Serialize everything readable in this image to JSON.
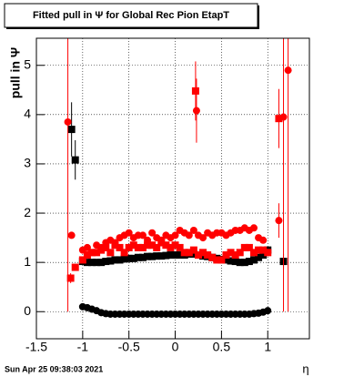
{
  "chart_data": {
    "type": "scatter",
    "title": "Fitted pull in  Ψ  for Global Rec Pion EtapT",
    "x_label": "η",
    "y_label": "pull in  Ψ",
    "timestamp": "Sun Apr 25 09:38:03 2021",
    "xlim": [
      -1.5,
      1.45
    ],
    "ylim": [
      -0.55,
      5.55
    ],
    "xticks": [
      -1.5,
      -1,
      -0.5,
      0,
      0.5,
      1
    ],
    "yticks": [
      0,
      1,
      2,
      3,
      4,
      5
    ],
    "grid": true,
    "series": [
      {
        "color": "#000000",
        "marker": "square",
        "x": [
          -1.12,
          -1.08,
          -1,
          -0.95,
          -0.9,
          -0.85,
          -0.8,
          -0.75,
          -0.7,
          -0.65,
          -0.6,
          -0.55,
          -0.5,
          -0.45,
          -0.4,
          -0.35,
          -0.3,
          -0.25,
          -0.2,
          -0.15,
          -0.1,
          -0.05,
          0,
          0.05,
          0.1,
          0.15,
          0.2,
          0.25,
          0.3,
          0.35,
          0.4,
          0.45,
          0.5,
          0.55,
          0.6,
          0.65,
          0.7,
          0.75,
          0.8,
          0.85,
          0.9,
          0.95,
          1,
          1.17
        ],
        "values": [
          3.7,
          3.08,
          1.02,
          1.0,
          1.0,
          1.0,
          1.0,
          1.02,
          1.03,
          1.05,
          1.05,
          1.07,
          1.08,
          1.08,
          1.1,
          1.1,
          1.12,
          1.12,
          1.13,
          1.13,
          1.14,
          1.15,
          1.15,
          1.15,
          1.15,
          1.17,
          1.17,
          1.15,
          1.13,
          1.12,
          1.1,
          1.08,
          1.06,
          1.05,
          1.03,
          1.02,
          1.0,
          1.0,
          1.02,
          1.05,
          1.1,
          1.15,
          1.25,
          1.02
        ],
        "errors": [
          0.55,
          0.4,
          0,
          0,
          0,
          0,
          0,
          0,
          0,
          0,
          0,
          0,
          0,
          0,
          0,
          0,
          0,
          0,
          0,
          0,
          0,
          0,
          0,
          0,
          0,
          0,
          0,
          0,
          0,
          0,
          0,
          0,
          0,
          0,
          0,
          0,
          0,
          0,
          0,
          0,
          0,
          0,
          0,
          0.15
        ]
      },
      {
        "color": "#000000",
        "marker": "circle",
        "x": [
          -1,
          -0.95,
          -0.9,
          -0.85,
          -0.8,
          -0.75,
          -0.7,
          -0.65,
          -0.6,
          -0.55,
          -0.5,
          -0.45,
          -0.4,
          -0.35,
          -0.3,
          -0.25,
          -0.2,
          -0.15,
          -0.1,
          -0.05,
          0,
          0.05,
          0.1,
          0.15,
          0.2,
          0.25,
          0.3,
          0.35,
          0.4,
          0.45,
          0.5,
          0.55,
          0.6,
          0.65,
          0.7,
          0.75,
          0.8,
          0.85,
          0.9,
          0.95,
          1
        ],
        "values": [
          0.1,
          0.08,
          0.05,
          0.02,
          -0.02,
          -0.04,
          -0.05,
          -0.05,
          -0.05,
          -0.05,
          -0.05,
          -0.05,
          -0.05,
          -0.05,
          -0.05,
          -0.05,
          -0.05,
          -0.05,
          -0.05,
          -0.05,
          -0.05,
          -0.05,
          -0.05,
          -0.05,
          -0.05,
          -0.05,
          -0.05,
          -0.05,
          -0.05,
          -0.05,
          -0.05,
          -0.05,
          -0.05,
          -0.05,
          -0.05,
          -0.05,
          -0.05,
          -0.04,
          -0.03,
          -0.01,
          0.02
        ]
      },
      {
        "color": "#ff0000",
        "marker": "circle",
        "x": [
          -1.16,
          -1.12,
          -1,
          -0.95,
          -0.9,
          -0.85,
          -0.8,
          -0.75,
          -0.7,
          -0.65,
          -0.6,
          -0.55,
          -0.5,
          -0.45,
          -0.4,
          -0.35,
          -0.3,
          -0.25,
          -0.2,
          -0.15,
          -0.1,
          -0.05,
          0,
          0.05,
          0.1,
          0.15,
          0.2,
          0.25,
          0.3,
          0.35,
          0.4,
          0.45,
          0.5,
          0.55,
          0.6,
          0.65,
          0.7,
          0.75,
          0.8,
          0.85,
          0.9,
          0.95,
          1,
          1.12,
          1.17,
          1.22,
          0.23
        ],
        "values": [
          3.85,
          1.55,
          1.25,
          1.3,
          1.2,
          1.35,
          1.3,
          1.4,
          1.45,
          1.4,
          1.5,
          1.55,
          1.6,
          1.5,
          1.55,
          1.55,
          1.45,
          1.6,
          1.5,
          1.45,
          1.55,
          1.5,
          1.55,
          1.65,
          1.6,
          1.55,
          1.65,
          1.55,
          1.5,
          1.6,
          1.55,
          1.6,
          1.6,
          1.55,
          1.6,
          1.65,
          1.65,
          1.7,
          1.65,
          1.7,
          1.5,
          1.45,
          1.2,
          1.85,
          3.95,
          4.9,
          4.08
        ],
        "errors": [
          3.85,
          0,
          0,
          0,
          0,
          0,
          0,
          0,
          0,
          0,
          0,
          0,
          0,
          0,
          0,
          0,
          0,
          0,
          0,
          0,
          0,
          0,
          0,
          0,
          0,
          0,
          0,
          0,
          0,
          0,
          0,
          0,
          0,
          0,
          0,
          0,
          0,
          0,
          0,
          0,
          0,
          0,
          0,
          0.35,
          3.95,
          4.9,
          0.65
        ]
      },
      {
        "color": "#ff0000",
        "marker": "square",
        "x": [
          -1.13,
          -1.08,
          -1,
          -0.95,
          -0.9,
          -0.85,
          -0.8,
          -0.75,
          -0.7,
          -0.65,
          -0.6,
          -0.55,
          -0.5,
          -0.45,
          -0.4,
          -0.35,
          -0.3,
          -0.25,
          -0.2,
          -0.15,
          -0.1,
          -0.05,
          0,
          0.05,
          0.1,
          0.15,
          0.2,
          0.25,
          0.3,
          0.35,
          0.4,
          0.45,
          0.5,
          0.55,
          0.6,
          0.65,
          0.7,
          0.75,
          0.8,
          0.85,
          0.9,
          0.95,
          1,
          1.12,
          0.22
        ],
        "values": [
          0.68,
          0.9,
          1.05,
          1.15,
          1.2,
          1.2,
          1.25,
          1.3,
          1.2,
          1.35,
          1.3,
          1.2,
          1.3,
          1.35,
          1.3,
          1.3,
          1.35,
          1.35,
          1.3,
          1.4,
          1.35,
          1.3,
          1.35,
          1.3,
          1.2,
          1.2,
          1.25,
          1.15,
          1.2,
          1.15,
          1.1,
          1.05,
          1.05,
          1.15,
          1.2,
          1.15,
          1.2,
          1.3,
          1.3,
          1.2,
          1.25,
          1.25,
          1.2,
          3.92,
          4.48
        ],
        "errors": [
          0.1,
          0,
          0,
          0,
          0,
          0,
          0,
          0,
          0,
          0,
          0,
          0,
          0,
          0,
          0,
          0,
          0,
          0,
          0,
          0,
          0,
          0,
          0,
          0,
          0,
          0,
          0,
          0,
          0,
          0,
          0,
          0,
          0,
          0,
          0,
          0,
          0,
          0,
          0,
          0,
          0,
          0,
          0,
          0.6,
          0.6
        ]
      }
    ]
  }
}
